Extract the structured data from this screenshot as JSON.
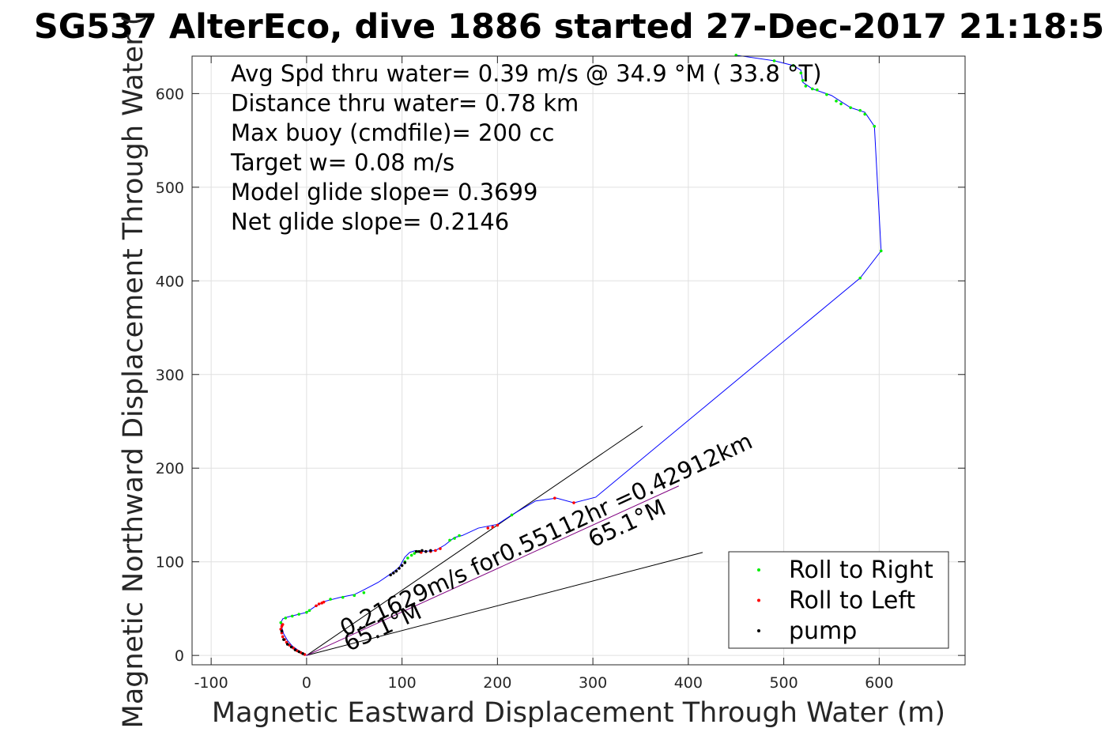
{
  "chart_data": {
    "type": "scatter",
    "title": "SG537 AlterEco, dive 1886 started 27-Dec-2017 21:18:5",
    "xlabel": "Magnetic Eastward Displacement Through Water (m)",
    "ylabel": "Magnetic Northward Displacement Through Water (",
    "xlim": [
      -120,
      690
    ],
    "ylim": [
      -10,
      640
    ],
    "xticks": [
      -100,
      0,
      100,
      200,
      300,
      400,
      500,
      600
    ],
    "yticks": [
      0,
      100,
      200,
      300,
      400,
      500,
      600
    ],
    "xtick_labels": [
      "-100",
      "0",
      "100",
      "200",
      "300",
      "400",
      "500",
      "600"
    ],
    "ytick_labels": [
      "0",
      "100",
      "200",
      "300",
      "400",
      "500",
      "600"
    ],
    "grid": true,
    "legend_position": "bottom-right",
    "annotations": [
      "Avg Spd thru water=  0.39 m/s @  34.9 °M ( 33.8 °T)",
      "Distance thru water=  0.78 km",
      "Max buoy (cmdfile)= 200 cc",
      "Target w= 0.08 m/s",
      "Model glide slope= 0.3699",
      "Net glide slope= 0.2146"
    ],
    "rotated_labels": [
      {
        "text": "0.21629m/s for0.55112hr =0.42912km",
        "x": 40,
        "y": 20,
        "angle": 24.9
      },
      {
        "text": "65.1°M",
        "x": 44,
        "y": 4,
        "angle": 24.9
      },
      {
        "text": "65.1°M",
        "x": 300,
        "y": 115,
        "angle": 24.9
      }
    ],
    "series": [
      {
        "name": "Roll to Right",
        "color": "#00ee00",
        "marker": "dot"
      },
      {
        "name": "Roll to Left",
        "color": "#ff0000",
        "marker": "dot"
      },
      {
        "name": "pump",
        "color": "#000000",
        "marker": "dot"
      }
    ],
    "track": {
      "color": "#0000ff",
      "x": [
        0,
        -8,
        -15,
        -20,
        -24,
        -26,
        -27,
        -25,
        -20,
        -12,
        0,
        10,
        20,
        35,
        50,
        60,
        75,
        88,
        97,
        103,
        108,
        114,
        121,
        135,
        145,
        155,
        163,
        180,
        200,
        215,
        240,
        262,
        280,
        303,
        580,
        602,
        595,
        585,
        570,
        550,
        530,
        520,
        518,
        510,
        490,
        450
      ],
      "y": [
        0,
        5,
        10,
        16,
        23,
        30,
        35,
        39,
        41,
        43,
        46,
        53,
        58,
        62,
        65,
        70,
        78,
        87,
        94,
        105,
        110,
        112,
        111,
        112,
        118,
        126,
        128,
        136,
        140,
        150,
        165,
        168,
        163,
        169,
        403,
        432,
        565,
        580,
        585,
        598,
        605,
        612,
        625,
        630,
        635,
        641
      ]
    },
    "roll_right_points": {
      "x": [
        -27,
        -22,
        -15,
        -8,
        0,
        3,
        25,
        38,
        50,
        60,
        103,
        106,
        110,
        113,
        116,
        150,
        155,
        160,
        215,
        450,
        490,
        510,
        518,
        520,
        523,
        530,
        535,
        545,
        555,
        560,
        570,
        580,
        585,
        595,
        602,
        580
      ],
      "y": [
        35,
        40,
        42,
        44,
        46,
        48,
        60,
        62,
        64,
        67,
        100,
        104,
        107,
        109,
        111,
        123,
        125,
        128,
        150,
        641,
        635,
        630,
        622,
        614,
        608,
        605,
        604,
        599,
        592,
        589,
        585,
        582,
        578,
        565,
        432,
        403
      ],
      "color": "#00ee00"
    },
    "roll_left_points": {
      "x": [
        -2,
        -6,
        -10,
        -14,
        -18,
        -21,
        -23,
        -25,
        -26,
        -27,
        -26,
        -25,
        10,
        13,
        16,
        18,
        120,
        125,
        130,
        135,
        140,
        190,
        195,
        200,
        260,
        280
      ],
      "y": [
        1,
        3,
        5,
        8,
        11,
        14,
        17,
        20,
        24,
        28,
        31,
        33,
        53,
        55,
        56,
        57,
        110,
        111,
        111,
        112,
        114,
        136,
        137,
        139,
        168,
        163
      ],
      "color": "#ff0000"
    },
    "pump_points": {
      "x": [
        -4,
        -8,
        -12,
        -16,
        -20,
        -24,
        -26,
        88,
        91,
        94,
        97,
        100,
        103,
        115,
        118,
        121,
        125,
        130
      ],
      "y": [
        2,
        4,
        6,
        9,
        12,
        17,
        26,
        86,
        88,
        90,
        93,
        96,
        99,
        111,
        111,
        112,
        111,
        112
      ],
      "color": "#000000"
    },
    "fan_lines": [
      {
        "x": [
          0,
          352
        ],
        "y": [
          0,
          245
        ],
        "color": "#000000"
      },
      {
        "x": [
          0,
          415
        ],
        "y": [
          0,
          110
        ],
        "color": "#000000"
      },
      {
        "x": [
          0,
          390
        ],
        "y": [
          0,
          181
        ],
        "color": "#800080"
      }
    ]
  }
}
